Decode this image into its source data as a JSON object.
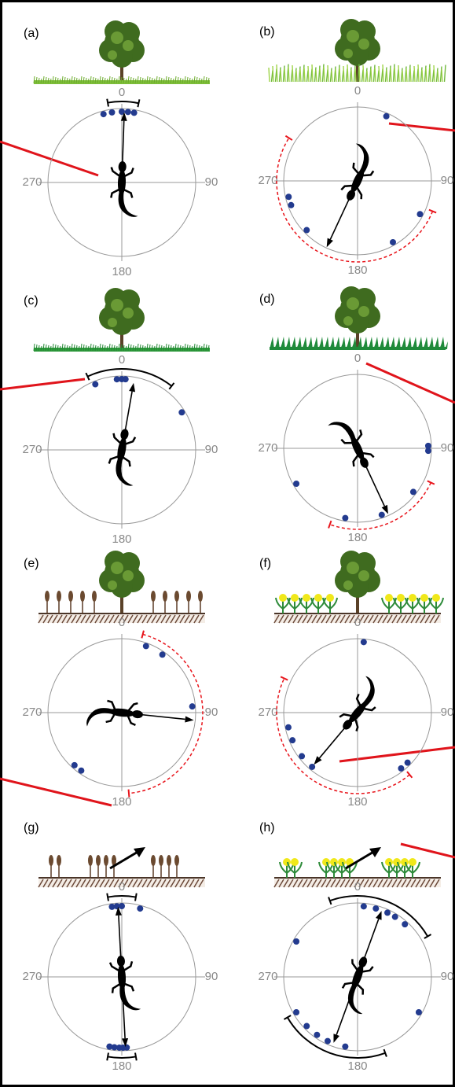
{
  "chart_data": [
    {
      "type": "circular",
      "title": "(a)",
      "ticks": [
        0,
        90,
        180,
        270
      ],
      "angles": [
        345,
        352,
        0,
        5,
        10
      ],
      "means": [
        {
          "angle": 2,
          "length": 0.95
        }
      ],
      "ci": [
        [
          350,
          12
        ]
      ],
      "ci_color": "#000000",
      "dot_color": "#233b8f"
    },
    {
      "type": "circular",
      "title": "(b)",
      "ticks": [
        0,
        90,
        180,
        270
      ],
      "angles": [
        24,
        118,
        150,
        226,
        250,
        257
      ],
      "means": [
        {
          "angle": 205,
          "length": 0.99
        }
      ],
      "ci": [
        [
          112,
          302
        ]
      ],
      "ci_color": "#e8141b",
      "dot_color": "#233b8f"
    },
    {
      "type": "circular",
      "title": "(c)",
      "ticks": [
        0,
        90,
        180,
        270
      ],
      "angles": [
        338,
        356,
        0,
        3,
        58
      ],
      "means": [
        {
          "angle": 10,
          "length": 0.92
        }
      ],
      "ci": [
        [
          335,
          38
        ]
      ],
      "ci_color": "#000000",
      "dot_color": "#233b8f"
    },
    {
      "type": "circular",
      "title": "(d)",
      "ticks": [
        0,
        90,
        180,
        270
      ],
      "angles": [
        88,
        92,
        128,
        160,
        190,
        240
      ],
      "means": [
        {
          "angle": 155,
          "length": 0.98
        }
      ],
      "ci": [
        [
          115,
          200
        ]
      ],
      "ci_color": "#e8141b",
      "dot_color": "#233b8f"
    },
    {
      "type": "circular",
      "title": "(e)",
      "ticks": [
        0,
        90,
        180,
        270
      ],
      "angles": [
        20,
        35,
        85,
        215,
        222
      ],
      "means": [
        {
          "angle": 96,
          "length": 0.98
        }
      ],
      "ci": [
        [
          15,
          175
        ]
      ],
      "ci_color": "#e8141b",
      "dot_color": "#233b8f"
    },
    {
      "type": "circular",
      "title": "(f)",
      "ticks": [
        0,
        90,
        180,
        270
      ],
      "angles": [
        5,
        135,
        142,
        220,
        232,
        247,
        258
      ],
      "means": [
        {
          "angle": 220,
          "length": 0.92
        }
      ],
      "ci": [
        [
          140,
          295
        ]
      ],
      "ci_color": "#e8141b",
      "dot_color": "#233b8f"
    },
    {
      "type": "circular",
      "title": "(g)",
      "ticks": [
        0,
        90,
        180,
        270
      ],
      "angles": [
        352,
        356,
        0,
        15,
        176,
        179,
        182,
        186,
        190
      ],
      "means": [
        {
          "angle": 357,
          "length": 0.95
        },
        {
          "angle": 177,
          "length": 0.95
        }
      ],
      "ci": [
        [
          350,
          10
        ],
        [
          170,
          190
        ]
      ],
      "ci_color": "#000000",
      "dot_color": "#233b8f"
    },
    {
      "type": "circular",
      "title": "(h)",
      "ticks": [
        0,
        90,
        180,
        270
      ],
      "angles": [
        5,
        15,
        25,
        32,
        42,
        120,
        190,
        205,
        215,
        226,
        240,
        300
      ],
      "means": [
        {
          "angle": 20,
          "length": 0.95
        },
        {
          "angle": 200,
          "length": 0.95
        }
      ],
      "ci": [
        [
          340,
          60
        ],
        [
          160,
          240
        ]
      ],
      "ci_color": "#000000",
      "dot_color": "#233b8f"
    }
  ]
}
